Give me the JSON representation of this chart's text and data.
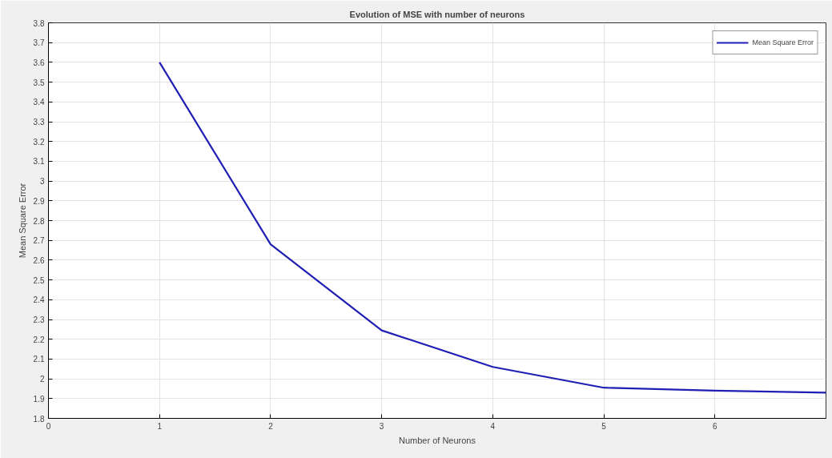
{
  "chart_data": {
    "type": "line",
    "title": "Evolution of MSE with number of neurons",
    "xlabel": "Number of Neurons",
    "ylabel": "Mean Square Error",
    "x": [
      1,
      2,
      3,
      4,
      5,
      6,
      7
    ],
    "series": [
      {
        "name": "Mean Square Error",
        "color": "#1f1fb4",
        "values": [
          3.6,
          2.68,
          2.245,
          2.06,
          1.955,
          1.94,
          1.93
        ]
      }
    ],
    "xlim": [
      0,
      7
    ],
    "xticks": [
      0,
      1,
      2,
      3,
      4,
      5,
      6
    ],
    "ylim": [
      1.8,
      3.8
    ],
    "yticks": [
      1.8,
      1.9,
      2,
      2.1,
      2.2,
      2.3,
      2.4,
      2.5,
      2.6,
      2.7,
      2.8,
      2.9,
      3,
      3.1,
      3.2,
      3.3,
      3.4,
      3.5,
      3.6,
      3.7,
      3.8
    ],
    "grid": true,
    "legend": "top right",
    "marker": "none",
    "line_style": "solid"
  }
}
